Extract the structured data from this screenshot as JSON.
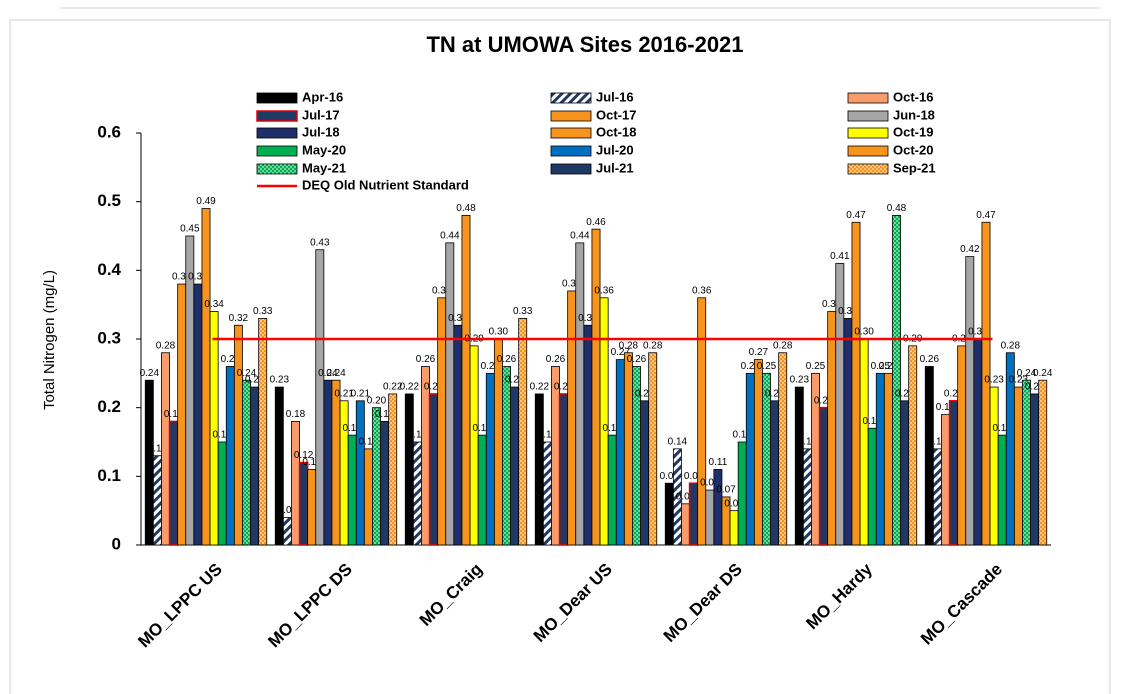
{
  "chart_data": {
    "type": "bar",
    "title": "TN at UMOWA Sites 2016-2021",
    "ylabel": "Total Nitrogen (mg/L)",
    "categories": [
      "MO_LPPC US",
      "MO_LPPC DS",
      "MO_Craig",
      "MO_Dear US",
      "MO_Dear DS",
      "MO_Hardy",
      "MO_Cascade"
    ],
    "ylim": [
      0,
      0.6
    ],
    "yticks": [
      0,
      0.1,
      0.2,
      0.3,
      0.4,
      0.5,
      0.6
    ],
    "series": [
      {
        "name": "Apr-16",
        "color": "#000000",
        "values": [
          0.24,
          0.23,
          0.22,
          0.22,
          0.09,
          0.23,
          0.26
        ]
      },
      {
        "name": "Jul-16",
        "color": "#1f3864",
        "pattern": "stripes",
        "values": [
          0.13,
          0.04,
          0.15,
          0.15,
          0.14,
          0.14,
          0.14
        ]
      },
      {
        "name": "Oct-16",
        "color": "#f79c6a",
        "values": [
          0.28,
          0.18,
          0.26,
          0.26,
          0.06,
          0.25,
          0.19
        ]
      },
      {
        "name": "Jul-17",
        "color": "#1f3864",
        "edgecolor": "#e00000",
        "values": [
          0.18,
          0.12,
          0.22,
          0.22,
          0.09,
          0.2,
          0.21
        ],
        "value_labels": [
          "0.18",
          "0.12",
          "0.22",
          "0.22",
          "0.09",
          "0.20",
          "0.21"
        ]
      },
      {
        "name": "Oct-17",
        "color": "#f7941d",
        "values": [
          0.38,
          0.11,
          0.36,
          0.37,
          0.36,
          0.34,
          0.29
        ]
      },
      {
        "name": "Jun-18",
        "color": "#a6a6a6",
        "values": [
          0.45,
          0.43,
          0.44,
          0.44,
          0.08,
          0.41,
          0.42
        ]
      },
      {
        "name": "Jul-18",
        "color": "#1f2f6b",
        "values": [
          0.38,
          0.24,
          0.32,
          0.32,
          0.11,
          0.33,
          0.3
        ],
        "value_labels": [
          "0.38",
          "0.24",
          "0.32",
          "0.32",
          "0.11",
          "0.33",
          "0.30"
        ]
      },
      {
        "name": "Oct-18",
        "color": "#f7941d",
        "values": [
          0.49,
          0.24,
          0.48,
          0.46,
          0.07,
          0.47,
          0.47
        ]
      },
      {
        "name": "Oct-19",
        "color": "#ffff00",
        "values": [
          0.34,
          0.21,
          0.29,
          0.36,
          0.05,
          0.3,
          0.23
        ],
        "value_labels": [
          "0.34",
          "0.21",
          "0.29",
          "0.36",
          "0.05",
          "0.30",
          "0.23"
        ]
      },
      {
        "name": "May-20",
        "color": "#00b050",
        "values": [
          0.15,
          0.16,
          0.16,
          0.16,
          0.15,
          0.17,
          0.16
        ]
      },
      {
        "name": "Jul-20",
        "color": "#0070c0",
        "values": [
          0.26,
          0.21,
          0.25,
          0.27,
          0.25,
          0.25,
          0.28
        ]
      },
      {
        "name": "Oct-20",
        "color": "#f7941d",
        "values": [
          0.32,
          0.14,
          0.3,
          0.28,
          0.27,
          0.25,
          0.23
        ],
        "value_labels": [
          "0.32",
          "0.14",
          "0.30",
          "0.28",
          "0.27",
          "0.25",
          "0.23"
        ]
      },
      {
        "name": "May-21",
        "color": "#00b050",
        "pattern": "dots",
        "values": [
          0.24,
          0.2,
          0.26,
          0.26,
          0.25,
          0.48,
          0.24
        ],
        "value_labels": [
          "0.24",
          "0.20",
          "0.26",
          "0.26",
          "0.25",
          "0.48",
          "0.24"
        ]
      },
      {
        "name": "Jul-21",
        "color": "#203864",
        "values": [
          0.23,
          0.18,
          0.23,
          0.21,
          0.21,
          0.21,
          0.22
        ]
      },
      {
        "name": "Sep-21",
        "color": "#f7941d",
        "pattern": "dots",
        "values": [
          0.33,
          0.22,
          0.33,
          0.28,
          0.28,
          0.29,
          0.24
        ]
      }
    ],
    "reference_line": {
      "name": "DEQ Old Nutrient Standard",
      "value": 0.3,
      "color": "#ff0000"
    }
  }
}
